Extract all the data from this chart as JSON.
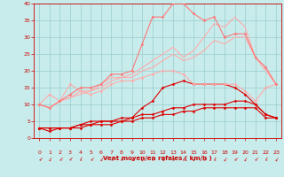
{
  "x": [
    0,
    1,
    2,
    3,
    4,
    5,
    6,
    7,
    8,
    9,
    10,
    11,
    12,
    13,
    14,
    15,
    16,
    17,
    18,
    19,
    20,
    21,
    22,
    23
  ],
  "series": [
    {
      "y": [
        3,
        3,
        3,
        3,
        3,
        4,
        4,
        4,
        5,
        5,
        6,
        6,
        7,
        7,
        8,
        8,
        9,
        9,
        9,
        9,
        9,
        9,
        6,
        6
      ],
      "color": "#dd0000",
      "linewidth": 0.8,
      "marker": "D",
      "markersize": 1.5
    },
    {
      "y": [
        3,
        3,
        3,
        3,
        4,
        4,
        5,
        5,
        5,
        6,
        7,
        7,
        8,
        9,
        9,
        10,
        10,
        10,
        10,
        11,
        11,
        10,
        7,
        6
      ],
      "color": "#dd0000",
      "linewidth": 0.8,
      "marker": "D",
      "markersize": 1.5
    },
    {
      "y": [
        3,
        2,
        3,
        3,
        4,
        5,
        5,
        5,
        6,
        6,
        9,
        11,
        15,
        16,
        17,
        16,
        16,
        16,
        16,
        15,
        13,
        10,
        7,
        6
      ],
      "color": "#dd0000",
      "linewidth": 0.8,
      "marker": "D",
      "markersize": 1.5
    },
    {
      "y": [
        10,
        13,
        11,
        16,
        14,
        13,
        14,
        16,
        17,
        17,
        18,
        19,
        20,
        20,
        19,
        16,
        16,
        16,
        16,
        16,
        14,
        11,
        15,
        16
      ],
      "color": "#ffaaaa",
      "linewidth": 0.8,
      "marker": "D",
      "markersize": 1.5
    },
    {
      "y": [
        10,
        9,
        11,
        12,
        13,
        14,
        15,
        17,
        18,
        18,
        20,
        21,
        23,
        25,
        23,
        24,
        26,
        29,
        28,
        30,
        30,
        24,
        20,
        16
      ],
      "color": "#ffaaaa",
      "linewidth": 0.8,
      "marker": null,
      "markersize": 0
    },
    {
      "y": [
        10,
        9,
        11,
        12,
        14,
        14,
        16,
        18,
        18,
        19,
        21,
        23,
        25,
        27,
        24,
        26,
        30,
        34,
        33,
        36,
        33,
        24,
        21,
        16
      ],
      "color": "#ffaaaa",
      "linewidth": 0.8,
      "marker": null,
      "markersize": 0
    },
    {
      "y": [
        10,
        9,
        11,
        13,
        15,
        15,
        16,
        19,
        19,
        20,
        28,
        36,
        36,
        40,
        40,
        37,
        35,
        36,
        30,
        31,
        31,
        24,
        21,
        16
      ],
      "color": "#ff7777",
      "linewidth": 0.8,
      "marker": "D",
      "markersize": 1.5
    }
  ],
  "xlim": [
    -0.5,
    23.5
  ],
  "ylim": [
    0,
    40
  ],
  "yticks": [
    0,
    5,
    10,
    15,
    20,
    25,
    30,
    35,
    40
  ],
  "xticks": [
    0,
    1,
    2,
    3,
    4,
    5,
    6,
    7,
    8,
    9,
    10,
    11,
    12,
    13,
    14,
    15,
    16,
    17,
    18,
    19,
    20,
    21,
    22,
    23
  ],
  "xlabel": "Vent moyen/en rafales ( km/h )",
  "grid_color": "#99cccc",
  "bg_color": "#c8ecec",
  "tick_color": "#cc0000",
  "label_color": "#cc0000",
  "figsize": [
    3.2,
    2.0
  ],
  "dpi": 100,
  "arrow_rotations": [
    -45,
    -30,
    -45,
    -40,
    -20,
    -45,
    -30,
    -45,
    -20,
    -45,
    -35,
    -45,
    -30,
    -45,
    -20,
    -30,
    -45,
    -20,
    -35,
    -45,
    -30,
    -45,
    -20,
    -35
  ]
}
